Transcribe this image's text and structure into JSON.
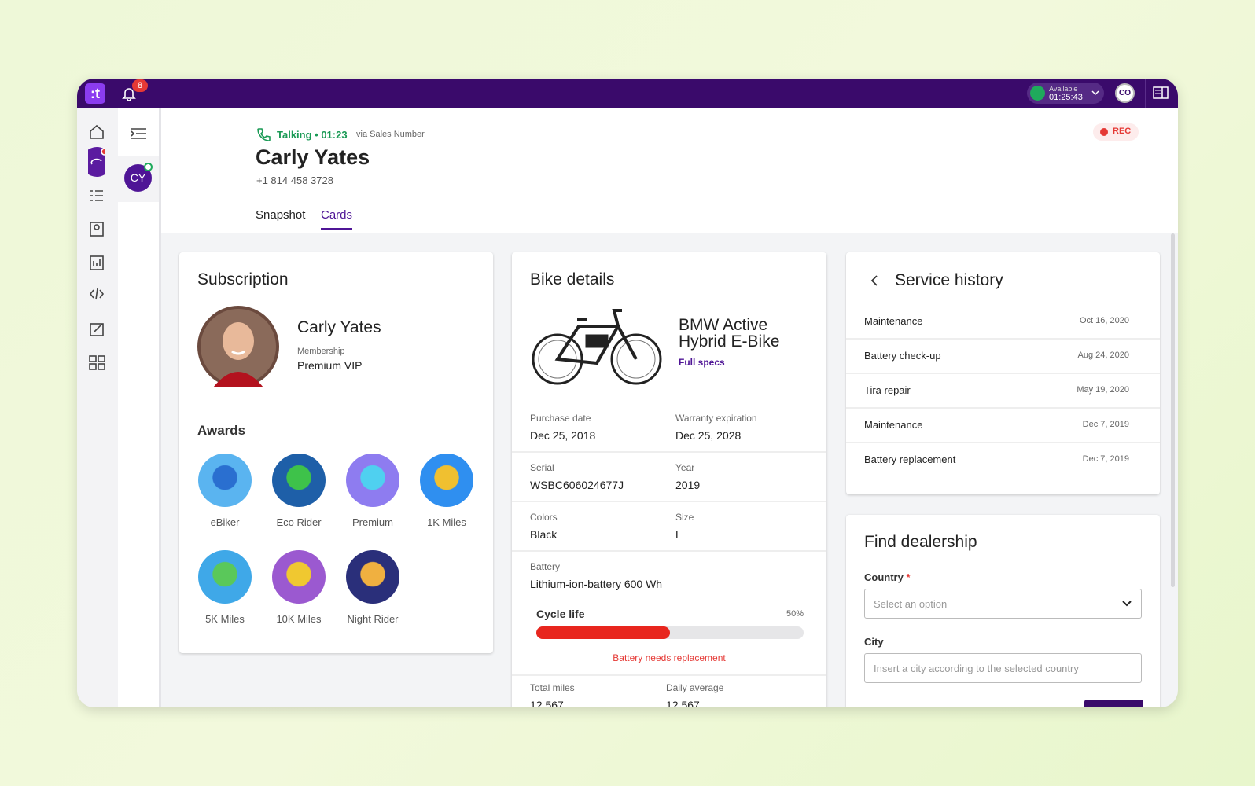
{
  "topbar": {
    "notifications": "8",
    "status": "Available",
    "timer": "01:25:43",
    "avatar": "CO"
  },
  "sidebar": {
    "contact_avatar": "CY"
  },
  "call": {
    "status": "Talking • 01:23",
    "via": "via Sales Number",
    "name": "Carly Yates",
    "phone": "+1 814 458 3728",
    "rec": "REC"
  },
  "tabs": [
    "Snapshot",
    "Cards"
  ],
  "subscription": {
    "title": "Subscription",
    "name": "Carly Yates",
    "membership_label": "Membership",
    "membership": "Premium VIP",
    "awards_title": "Awards",
    "awards": [
      "eBiker",
      "Eco Rider",
      "Premium",
      "1K Miles",
      "5K Miles",
      "10K Miles",
      "Night Rider"
    ]
  },
  "bike": {
    "title": "Bike details",
    "model": "BMW Active Hybrid E-Bike",
    "specs_link": "Full specs",
    "rows": [
      [
        {
          "label": "Purchase date",
          "value": "Dec 25, 2018"
        },
        {
          "label": "Warranty expiration",
          "value": "Dec 25, 2028"
        }
      ],
      [
        {
          "label": "Serial",
          "value": "WSBC606024677J"
        },
        {
          "label": "Year",
          "value": "2019"
        }
      ],
      [
        {
          "label": "Colors",
          "value": "Black"
        },
        {
          "label": "Size",
          "value": "L"
        }
      ],
      [
        {
          "label": "Battery",
          "value": "Lithium-ion-battery 600 Wh"
        }
      ]
    ],
    "cycle_life": {
      "label": "Cycle life",
      "percent": {
        "value": 50,
        "label": "50%"
      },
      "warning": "Battery needs replacement"
    },
    "totals": [
      {
        "label": "Total miles",
        "value": "12,567"
      },
      {
        "label": "Daily average",
        "value": "12,567"
      }
    ]
  },
  "service_history": {
    "title": "Service history",
    "rows": [
      {
        "service": "Maintenance",
        "date": "Oct 16, 2020"
      },
      {
        "service": "Battery check-up",
        "date": "Aug 24, 2020"
      },
      {
        "service": "Tira repair",
        "date": "May 19, 2020"
      },
      {
        "service": "Maintenance",
        "date": "Dec 7, 2019"
      },
      {
        "service": "Battery replacement",
        "date": "Dec 7, 2019"
      }
    ]
  },
  "dealership": {
    "title": "Find dealership",
    "country_label": "Country",
    "required": "*",
    "country_placeholder": "Select an option",
    "city_label": "City",
    "city_placeholder": "Insert a city according to the selected country"
  }
}
